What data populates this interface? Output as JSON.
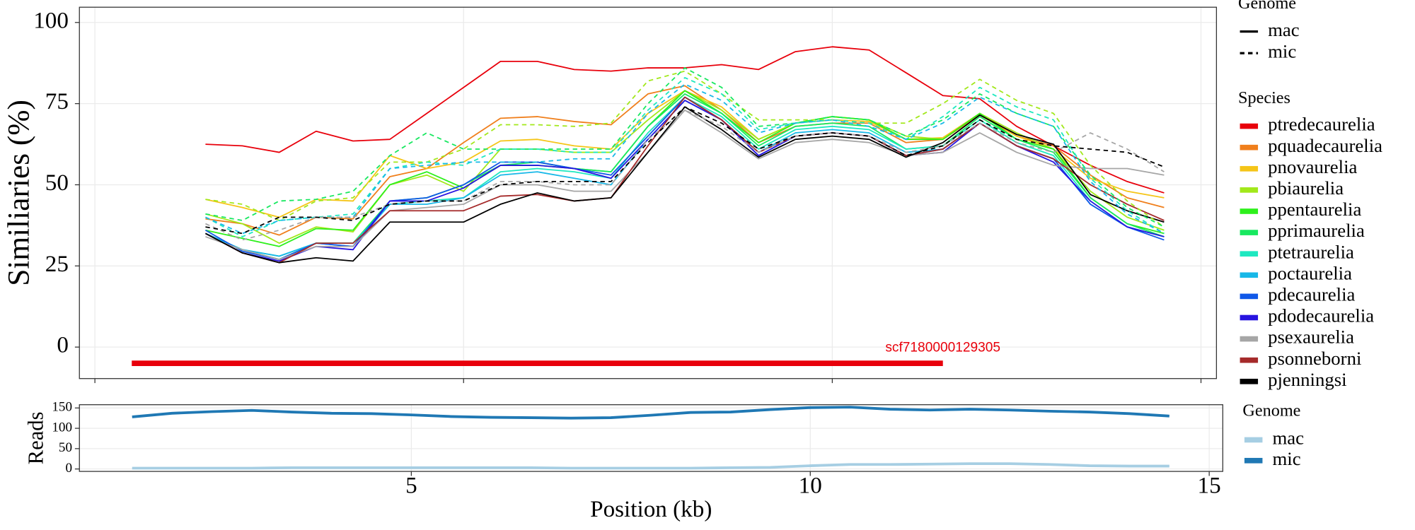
{
  "chart_data": [
    {
      "type": "line",
      "y_label": "Similiaries (%)",
      "xlim": [
        -0.21,
        15.21
      ],
      "ylim": [
        -9.7,
        104.7
      ],
      "xticks": [
        0,
        5,
        10,
        15
      ],
      "yticks": [
        0,
        25,
        50,
        75,
        100
      ],
      "grid": true,
      "x": [
        1.5,
        2,
        2.5,
        3,
        3.5,
        4,
        4.5,
        5,
        5.5,
        6,
        6.5,
        7,
        7.5,
        8,
        8.5,
        9,
        9.5,
        10,
        10.5,
        11,
        11.5,
        12,
        12.5,
        13,
        13.5,
        14,
        14.5
      ],
      "annotation": {
        "label": "scf7180000129305",
        "start": 0.5,
        "end": 11.5,
        "y": -5,
        "color": "#e8000b"
      },
      "legends": [
        {
          "title": "Genome",
          "items": [
            {
              "name": "mac",
              "dash": "solid"
            },
            {
              "name": "mic",
              "dash": "dashed"
            }
          ]
        },
        {
          "title": "Species",
          "items": [
            "ptredecaurelia",
            "pquadecaurelia",
            "pnovaurelia",
            "pbiaurelia",
            "ppentaurelia",
            "pprimaurelia",
            "ptetraurelia",
            "poctaurelia",
            "pdecaurelia",
            "pdodecaurelia",
            "psexaurelia",
            "psonneborni",
            "pjenningsi"
          ]
        }
      ],
      "series": [
        {
          "name": "ptredecaurelia",
          "genome": "mac",
          "color": "#e8000b",
          "values": [
            62.5,
            62,
            60,
            66.5,
            63.5,
            64,
            72,
            80,
            88,
            88,
            85.5,
            85,
            86,
            86,
            87,
            85.5,
            91,
            92.5,
            91.5,
            84.5,
            77.5,
            76.5,
            68,
            62,
            56,
            51,
            47.5
          ]
        },
        {
          "name": "pquadecaurelia",
          "genome": "mac",
          "color": "#f07f1c",
          "values": [
            39.5,
            38,
            34.5,
            40,
            39.5,
            52.5,
            55,
            63,
            70.5,
            71,
            69.5,
            68.5,
            78,
            80.5,
            73,
            63,
            68,
            69,
            69,
            63,
            64,
            71.5,
            65,
            62,
            53,
            46,
            43
          ]
        },
        {
          "name": "pnovaurelia",
          "genome": "mac",
          "color": "#f5c518",
          "values": [
            45.5,
            43,
            40,
            45.5,
            45,
            59,
            55,
            57,
            63.5,
            64,
            62,
            61,
            72,
            79,
            74,
            64,
            69,
            70,
            69.5,
            64,
            64.5,
            72,
            65,
            61,
            52,
            48,
            46
          ]
        },
        {
          "name": "pbiaurelia",
          "genome": "mac",
          "color": "#a2e81a",
          "values": [
            41,
            38,
            32,
            37,
            35.5,
            50,
            53,
            48,
            61,
            61,
            60,
            60,
            70,
            79,
            73,
            64,
            69,
            71,
            70,
            65,
            64,
            72,
            66,
            61,
            48,
            40,
            36
          ]
        },
        {
          "name": "ppentaurelia",
          "genome": "mac",
          "color": "#2ef01c",
          "values": [
            36,
            33.5,
            31,
            36.5,
            36,
            50,
            54,
            49,
            56,
            56,
            55,
            54,
            68,
            79,
            72,
            63,
            69,
            71,
            70,
            64,
            64,
            72,
            64,
            61,
            46,
            38,
            35
          ]
        },
        {
          "name": "pprimaurelia",
          "genome": "mac",
          "color": "#18e860",
          "values": [
            35,
            30,
            27,
            32,
            32,
            45,
            46,
            50,
            56,
            57,
            55,
            54,
            68,
            78,
            72,
            62,
            68,
            69,
            68,
            61,
            62,
            71,
            64,
            60,
            46,
            38,
            34
          ]
        },
        {
          "name": "ptetraurelia",
          "genome": "mac",
          "color": "#1ee8c0",
          "values": [
            35,
            30,
            28,
            32,
            32,
            44,
            45,
            46,
            54,
            55,
            54,
            52,
            66,
            77,
            71,
            61,
            67,
            68,
            67,
            61,
            62,
            70,
            63,
            59,
            45,
            37,
            34
          ]
        },
        {
          "name": "poctaurelia",
          "genome": "mac",
          "color": "#18b8e8",
          "values": [
            35,
            30,
            28,
            32,
            31,
            44,
            44,
            46,
            53,
            54,
            52,
            50,
            64,
            76,
            70,
            60,
            66,
            67,
            66,
            60,
            61,
            69,
            62,
            58,
            44,
            37,
            34
          ]
        },
        {
          "name": "pdecaurelia",
          "genome": "mac",
          "color": "#1058e8",
          "values": [
            36,
            29.5,
            27,
            32,
            31,
            45,
            46,
            50,
            57,
            57,
            55,
            53,
            65,
            77,
            70,
            59,
            65,
            66,
            65,
            59,
            61,
            69,
            62,
            58,
            44,
            37,
            33
          ]
        },
        {
          "name": "pdodecaurelia",
          "genome": "mac",
          "color": "#2814e0",
          "values": [
            35,
            29,
            26.5,
            31,
            30,
            45,
            45,
            49,
            56,
            56,
            55,
            52,
            64,
            76,
            70,
            59,
            65,
            66,
            65,
            59,
            60,
            69,
            62,
            57,
            45,
            37,
            34
          ]
        },
        {
          "name": "psexaurelia",
          "genome": "mac",
          "color": "#a6a6a6",
          "values": [
            34,
            30,
            27,
            31,
            31,
            42,
            43,
            44,
            50,
            50,
            48,
            48,
            60,
            73,
            66,
            58,
            63,
            64,
            63,
            59,
            60,
            66,
            60,
            56,
            55,
            55,
            53
          ]
        },
        {
          "name": "psonneborni",
          "genome": "mac",
          "color": "#a52a2a",
          "values": [
            35,
            29,
            26,
            32,
            32,
            42,
            42,
            42,
            46.5,
            47,
            45,
            46,
            62,
            77,
            70,
            60,
            65,
            66,
            65,
            59,
            61,
            69,
            62,
            58,
            50,
            44,
            39
          ]
        },
        {
          "name": "pjenningsi",
          "genome": "mac",
          "color": "#000000",
          "values": [
            35,
            29,
            26,
            27.5,
            26.5,
            38.5,
            38.5,
            38.5,
            44,
            47.5,
            45,
            46,
            60,
            74,
            67,
            58.5,
            64,
            65,
            64,
            58.5,
            63,
            71.5,
            65.5,
            62.5,
            47,
            42,
            38.5
          ]
        },
        {
          "name": "pbiaurelia",
          "genome": "mic",
          "color": "#a2e81a",
          "values": [
            45.5,
            44,
            39,
            45,
            46,
            57,
            57,
            61,
            68.5,
            68.5,
            68,
            69,
            82,
            85,
            78,
            70,
            70,
            70,
            69,
            69,
            75,
            82.5,
            76,
            72,
            56,
            45,
            37
          ]
        },
        {
          "name": "pprimaurelia",
          "genome": "mic",
          "color": "#18e860",
          "values": [
            41,
            39,
            45,
            45.5,
            48,
            59,
            66,
            61,
            61,
            61,
            61,
            61,
            75,
            86,
            80,
            68,
            69,
            71,
            70,
            65,
            70,
            78,
            72,
            68,
            53,
            43,
            37
          ]
        },
        {
          "name": "ptetraurelia",
          "genome": "mic",
          "color": "#1ee8c0",
          "values": [
            40,
            34,
            39,
            40,
            41,
            55,
            57,
            56,
            61,
            61,
            60,
            60,
            73,
            83,
            78,
            67,
            69,
            70,
            69,
            64,
            71,
            80,
            74,
            70,
            52,
            42,
            35
          ]
        },
        {
          "name": "poctaurelia",
          "genome": "mic",
          "color": "#18b8e8",
          "values": [
            40,
            35,
            39,
            40,
            40,
            55,
            56,
            57,
            57,
            57,
            58,
            58,
            72,
            81,
            76,
            66,
            69,
            70,
            68,
            64,
            69,
            77,
            72,
            68,
            51,
            41,
            35
          ]
        },
        {
          "name": "psexaurelia",
          "genome": "mic",
          "color": "#a6a6a6",
          "values": [
            38,
            33,
            36,
            40,
            40,
            44,
            45,
            45,
            51,
            51,
            50,
            50,
            64,
            73,
            68,
            60,
            65,
            66,
            65,
            60,
            62,
            69,
            63,
            60,
            66,
            61,
            54
          ]
        },
        {
          "name": "pjenningsi",
          "genome": "mic",
          "color": "#000000",
          "values": [
            37,
            35,
            40,
            40,
            39,
            44,
            45,
            45,
            50,
            51,
            51,
            51,
            63,
            74,
            69,
            61,
            65,
            66,
            65,
            59,
            62,
            70,
            64,
            62,
            61,
            60,
            55.5
          ]
        }
      ]
    },
    {
      "type": "line",
      "y_label": "Reads",
      "x_label": "Position (kb)",
      "xlim": [
        0.84,
        15.17
      ],
      "ylim": [
        -6,
        158
      ],
      "xticks": [
        5,
        10,
        15
      ],
      "yticks": [
        0,
        50,
        100,
        150
      ],
      "grid": true,
      "x": [
        1.5,
        2,
        2.5,
        3,
        3.5,
        4,
        4.5,
        5,
        5.5,
        6,
        6.5,
        7,
        7.5,
        8,
        8.5,
        9,
        9.5,
        10,
        10.5,
        11,
        11.5,
        12,
        12.5,
        13,
        13.5,
        14,
        14.5
      ],
      "legend_title": "Genome",
      "series": [
        {
          "name": "mac",
          "color": "#a6cee3",
          "values": [
            2,
            2,
            2,
            2,
            3,
            3,
            3,
            3,
            3,
            3,
            3,
            2,
            2,
            2,
            2,
            3,
            4,
            8,
            11,
            11,
            12,
            13,
            13,
            11,
            8,
            7,
            7
          ]
        },
        {
          "name": "mic",
          "color": "#1f78b4",
          "values": [
            128,
            137,
            141,
            144,
            140,
            137,
            136,
            133,
            129,
            127,
            126,
            125,
            126,
            132,
            139,
            140,
            146,
            151,
            152,
            147,
            145,
            147,
            145,
            142,
            140,
            136,
            130
          ]
        }
      ]
    }
  ]
}
